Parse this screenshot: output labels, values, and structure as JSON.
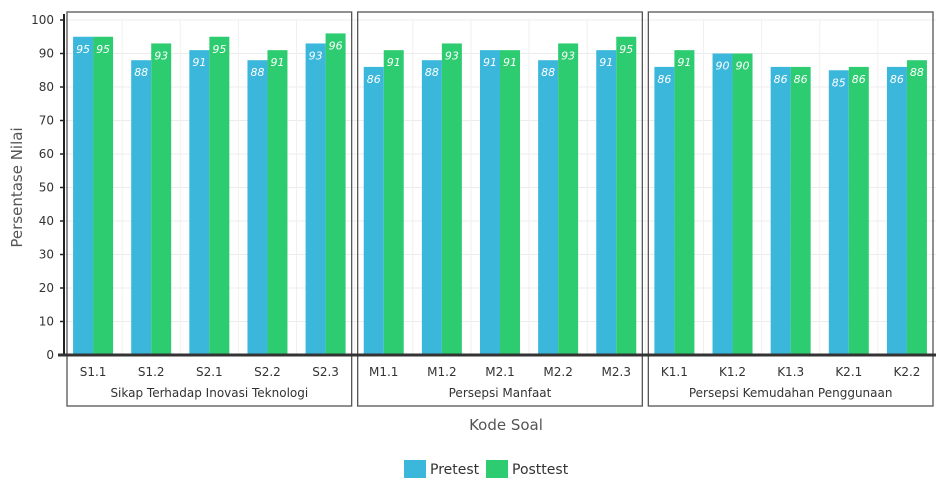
{
  "chart_data": {
    "type": "bar",
    "ylabel": "Persentase Nilai",
    "xlabel": "Kode Soal",
    "ylim": [
      0,
      100
    ],
    "yticks": [
      0,
      10,
      20,
      30,
      40,
      50,
      60,
      70,
      80,
      90,
      100
    ],
    "grid": true,
    "legend_position": "bottom",
    "categories": [
      "S1.1",
      "S1.2",
      "S2.1",
      "S2.2",
      "S2.3",
      "M1.1",
      "M1.2",
      "M2.1",
      "M2.2",
      "M2.3",
      "K1.1",
      "K1.2",
      "K1.3",
      "K2.1",
      "K2.2"
    ],
    "groups": [
      {
        "label": "Sikap Terhadap Inovasi Teknologi",
        "categories": [
          "S1.1",
          "S1.2",
          "S2.1",
          "S2.2",
          "S2.3"
        ]
      },
      {
        "label": "Persepsi Manfaat",
        "categories": [
          "M1.1",
          "M1.2",
          "M2.1",
          "M2.2",
          "M2.3"
        ]
      },
      {
        "label": "Persepsi Kemudahan Penggunaan",
        "categories": [
          "K1.1",
          "K1.2",
          "K1.3",
          "K2.1",
          "K2.2"
        ]
      }
    ],
    "series": [
      {
        "name": "Pretest",
        "color": "#3bb7dc",
        "values": [
          95,
          88,
          91,
          88,
          93,
          86,
          88,
          91,
          88,
          91,
          86,
          90,
          86,
          85,
          86
        ]
      },
      {
        "name": "Posttest",
        "color": "#2ecc71",
        "values": [
          95,
          93,
          95,
          91,
          96,
          91,
          93,
          91,
          93,
          95,
          91,
          90,
          86,
          86,
          88
        ]
      }
    ]
  }
}
